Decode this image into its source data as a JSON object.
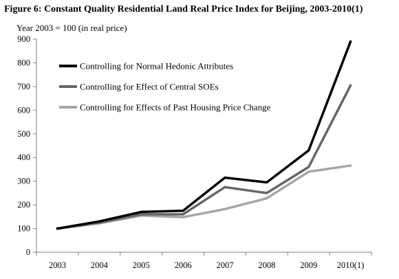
{
  "chart_data": {
    "type": "line",
    "title": "Figure 6:  Constant Quality Residential Land Real Price Index for Beijing, 2003-2010(1)",
    "subtitle": "Year 2003 = 100 (in real price)",
    "xlabel": "",
    "ylabel": "",
    "categories": [
      "2003",
      "2004",
      "2005",
      "2006",
      "2007",
      "2008",
      "2009",
      "2010(1)"
    ],
    "ylim": [
      0,
      900
    ],
    "yticks": [
      0,
      100,
      200,
      300,
      400,
      500,
      600,
      700,
      800,
      900
    ],
    "grid": false,
    "legend_position": "top-left",
    "series": [
      {
        "name": "Controlling for Normal Hedonic Attributes",
        "color": "#000000",
        "values": [
          100,
          130,
          170,
          175,
          315,
          295,
          430,
          890
        ]
      },
      {
        "name": "Controlling for Effect of Central SOEs",
        "color": "#666666",
        "values": [
          100,
          125,
          160,
          160,
          275,
          250,
          360,
          705
        ]
      },
      {
        "name": "Controlling for Effects of Past Housing Price Change",
        "color": "#a6a6a6",
        "values": [
          100,
          122,
          155,
          148,
          182,
          228,
          340,
          366
        ]
      }
    ]
  }
}
